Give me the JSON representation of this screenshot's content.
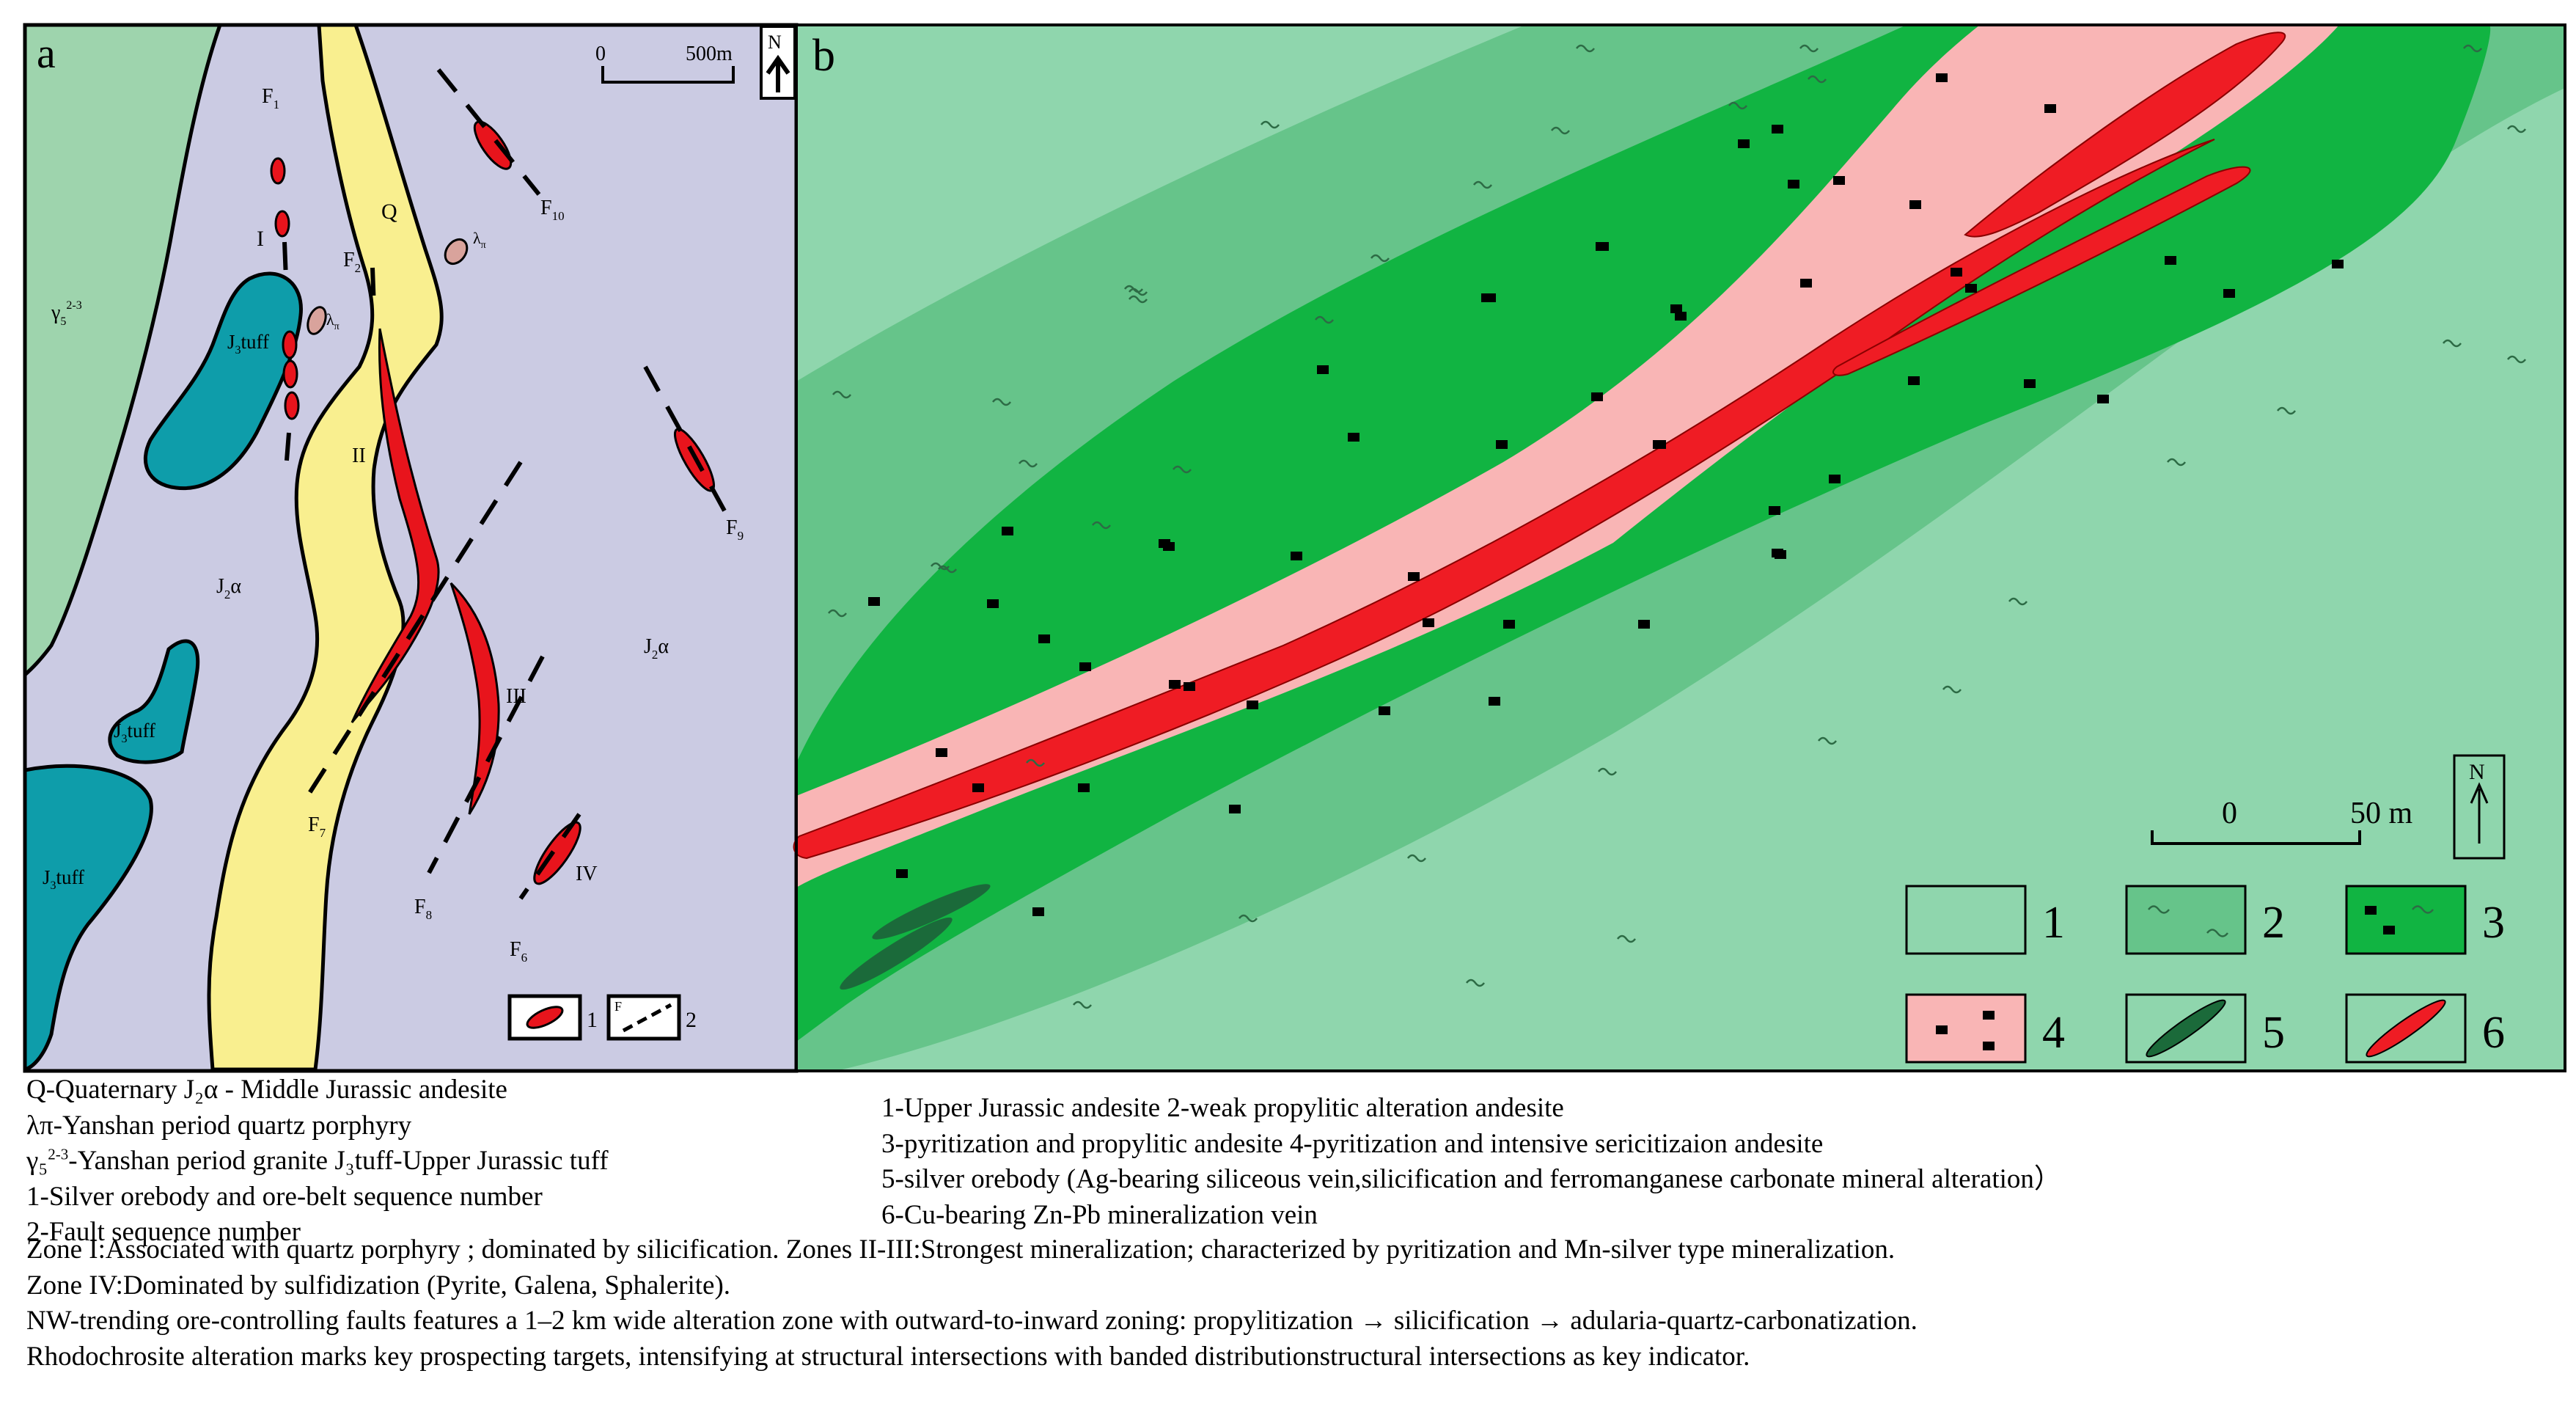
{
  "panel_a": {
    "label": "a",
    "scale": {
      "zero": "0",
      "dist": "500m"
    },
    "north": "N",
    "faults": {
      "F1": {
        "main": "F",
        "sub": "1"
      },
      "F2": {
        "main": "F",
        "sub": "2"
      },
      "F6": {
        "main": "F",
        "sub": "6"
      },
      "F7": {
        "main": "F",
        "sub": "7"
      },
      "F8": {
        "main": "F",
        "sub": "8"
      },
      "F9": {
        "main": "F",
        "sub": "9"
      },
      "F10": {
        "main": "F",
        "sub": "10"
      }
    },
    "zones": [
      "I",
      "II",
      "III",
      "IV"
    ],
    "units": {
      "quaternary": "Q",
      "granite": {
        "main": "γ",
        "sub": "5",
        "sup": "2-3"
      },
      "tuff": {
        "sub": "3",
        "text": "tuff",
        "main": "J"
      },
      "andesite": {
        "main": "J",
        "sub": "2",
        "tail": "α"
      },
      "porphyry": {
        "main": "λ",
        "sub": "π"
      }
    },
    "legend": [
      {
        "num": "1"
      },
      {
        "num": "2",
        "label": "F"
      }
    ]
  },
  "panel_b": {
    "label": "b",
    "scale": {
      "zero": "0",
      "dist": "50 m"
    },
    "north": "N",
    "legend": [
      "1",
      "2",
      "3",
      "4",
      "5",
      "6"
    ]
  },
  "colors": {
    "granite": "#9ed4ad",
    "andesite": "#cbcbe3",
    "tuff": "#0e9daa",
    "quaternary": "#f9ef8f",
    "orebody": "#e8141c",
    "porphyry": "#d9a39c",
    "unit1": "#8fd6ad",
    "unit2": "#66c48a",
    "unit3": "#11b442",
    "unit4": "#f9b5b5",
    "unit5": "#1b6a3a",
    "unit6": "#ef1c24"
  },
  "caption": {
    "left": [
      "Q-Quaternary    J₂α - Middle Jurassic andesite",
      "λπ-Yanshan period quartz porphyry",
      {
        "pre": "γ₅",
        "sup": "2-3",
        "post": "-Yanshan period granite    J₃tuff-Upper Jurassic tuff"
      },
      "1-Silver orebody and ore-belt sequence number",
      "2-Fault sequence number"
    ],
    "right": [
      "1-Upper Jurassic  andesite    2-weak propylitic alteration andesite",
      "3-pyritization and propylitic andesite    4-pyritization and intensive sericitizaion andesite",
      "5-silver orebody (Ag-bearing siliceous vein,silicification and ferromanganese carbonate mineral alteration）",
      "6-Cu-bearing Zn-Pb mineralization vein"
    ],
    "full": [
      "Zone I:Associated with quartz porphyry ; dominated by silicification.  Zones II-III:Strongest mineralization; characterized by pyritization and Mn-silver type mineralization.",
      "Zone IV:Dominated by sulfidization (Pyrite, Galena, Sphalerite).",
      "NW-trending ore-controlling faults features a 1–2 km wide alteration zone with outward-to-inward zoning: propylitization → silicification → adularia-quartz-carbonatization.",
      "Rhodochrosite alteration marks key prospecting targets, intensifying at structural intersections with banded distributionstructural intersections as key indicator."
    ]
  }
}
